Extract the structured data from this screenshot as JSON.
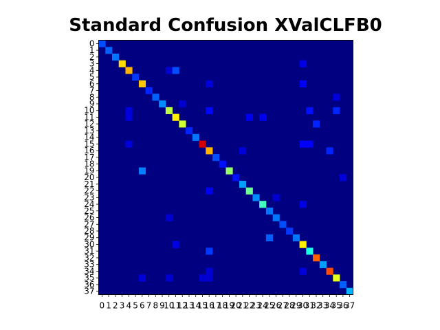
{
  "chart_data": {
    "type": "heatmap",
    "title": "Standard Confusion XValCLFB0",
    "xlabel": "",
    "ylabel": "",
    "size": 38,
    "colormap": "jet",
    "vmin": 0,
    "vmax": 1,
    "x_tick_labels": [
      "0",
      "1",
      "2",
      "3",
      "4",
      "5",
      "6",
      "7",
      "8",
      "9",
      "10",
      "11",
      "12",
      "13",
      "14",
      "15",
      "16",
      "17",
      "18",
      "19",
      "20",
      "21",
      "22",
      "23",
      "24",
      "25",
      "26",
      "27",
      "28",
      "29",
      "30",
      "31",
      "32",
      "33",
      "34",
      "35",
      "36",
      "37"
    ],
    "y_tick_labels": [
      "0",
      "1",
      "2",
      "3",
      "4",
      "5",
      "6",
      "7",
      "8",
      "9",
      "10",
      "11",
      "12",
      "13",
      "14",
      "15",
      "16",
      "17",
      "18",
      "19",
      "20",
      "21",
      "22",
      "23",
      "24",
      "25",
      "26",
      "27",
      "28",
      "29",
      "30",
      "31",
      "32",
      "33",
      "34",
      "35",
      "36",
      "37"
    ],
    "diagonal": [
      0.2,
      0.22,
      0.24,
      0.66,
      0.7,
      0.18,
      0.68,
      0.16,
      0.22,
      0.26,
      0.56,
      0.64,
      0.58,
      0.16,
      0.24,
      0.92,
      0.7,
      0.2,
      0.14,
      0.52,
      0.14,
      0.28,
      0.48,
      0.26,
      0.44,
      0.24,
      0.24,
      0.2,
      0.18,
      0.24,
      0.64,
      0.4,
      0.78,
      0.28,
      0.8,
      0.6,
      0.22,
      0.3
    ],
    "off_diagonal": [
      {
        "row": 19,
        "col": 6,
        "value": 0.25
      },
      {
        "row": 4,
        "col": 11,
        "value": 0.2
      },
      {
        "row": 29,
        "col": 25,
        "value": 0.22
      },
      {
        "row": 31,
        "col": 16,
        "value": 0.18
      },
      {
        "row": 12,
        "col": 32,
        "value": 0.16
      },
      {
        "row": 10,
        "col": 35,
        "value": 0.16
      },
      {
        "row": 16,
        "col": 34,
        "value": 0.16
      },
      {
        "row": 10,
        "col": 31,
        "value": 0.14
      },
      {
        "row": 10,
        "col": 16,
        "value": 0.13
      },
      {
        "row": 15,
        "col": 30,
        "value": 0.12
      },
      {
        "row": 15,
        "col": 31,
        "value": 0.12
      },
      {
        "row": 6,
        "col": 30,
        "value": 0.12
      },
      {
        "row": 22,
        "col": 16,
        "value": 0.11
      },
      {
        "row": 11,
        "col": 24,
        "value": 0.11
      },
      {
        "row": 11,
        "col": 22,
        "value": 0.11
      },
      {
        "row": 30,
        "col": 11,
        "value": 0.1
      },
      {
        "row": 3,
        "col": 30,
        "value": 0.1
      },
      {
        "row": 24,
        "col": 30,
        "value": 0.1
      },
      {
        "row": 20,
        "col": 36,
        "value": 0.09
      },
      {
        "row": 8,
        "col": 35,
        "value": 0.09
      },
      {
        "row": 16,
        "col": 21,
        "value": 0.09
      },
      {
        "row": 34,
        "col": 30,
        "value": 0.09
      },
      {
        "row": 35,
        "col": 6,
        "value": 0.09
      },
      {
        "row": 6,
        "col": 16,
        "value": 0.09
      },
      {
        "row": 15,
        "col": 4,
        "value": 0.09
      },
      {
        "row": 10,
        "col": 4,
        "value": 0.09
      },
      {
        "row": 11,
        "col": 4,
        "value": 0.09
      },
      {
        "row": 4,
        "col": 10,
        "value": 0.08
      },
      {
        "row": 26,
        "col": 10,
        "value": 0.08
      },
      {
        "row": 9,
        "col": 12,
        "value": 0.08
      },
      {
        "row": 23,
        "col": 26,
        "value": 0.08
      },
      {
        "row": 35,
        "col": 10,
        "value": 0.08
      },
      {
        "row": 35,
        "col": 15,
        "value": 0.08
      },
      {
        "row": 35,
        "col": 16,
        "value": 0.08
      },
      {
        "row": 34,
        "col": 16,
        "value": 0.08
      }
    ]
  }
}
